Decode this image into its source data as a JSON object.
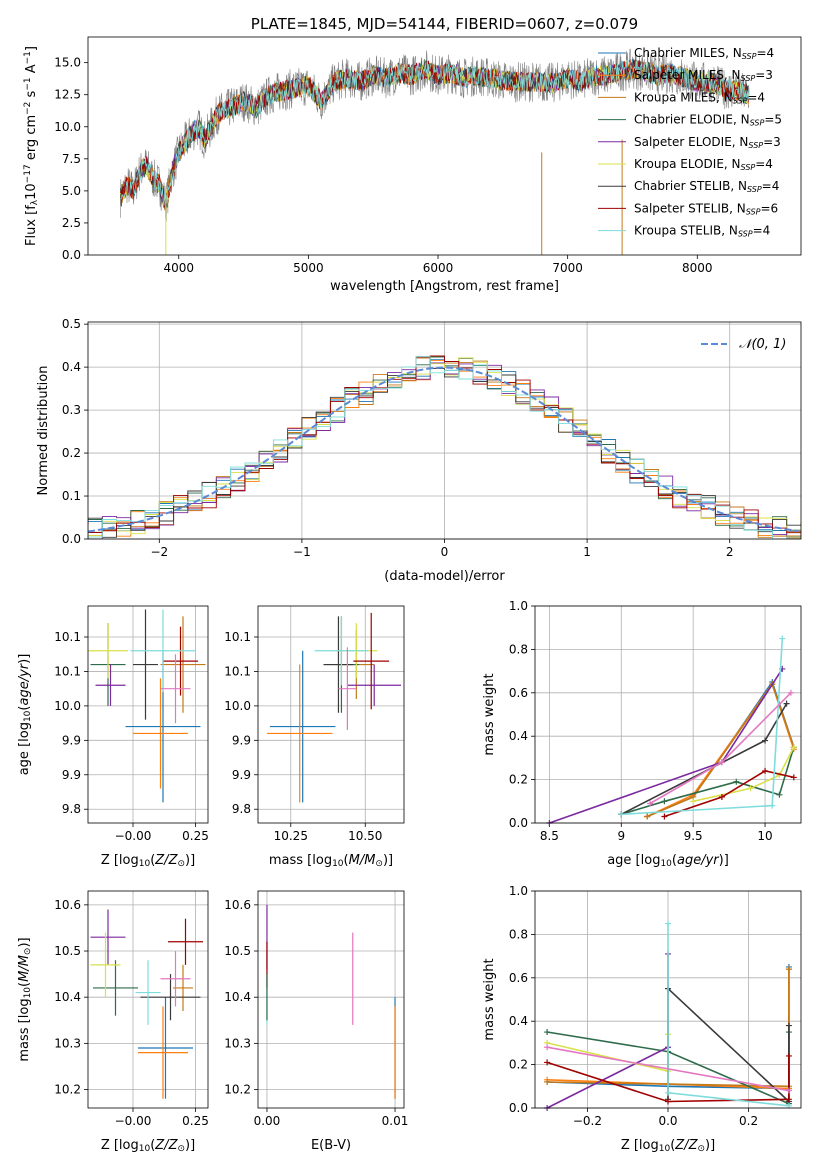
{
  "title": "PLATE=1845, MJD=54144, FIBERID=0607, z=0.079",
  "model_colors": [
    "#1f77b4",
    "#ff7f0e",
    "#c47a1a",
    "#2e6b4a",
    "#7b2aa0",
    "#d9e04a",
    "#3a3a3a",
    "#a00000",
    "#7fdcdc"
  ],
  "chart_data": [
    {
      "id": "spectrum",
      "type": "line",
      "title": "PLATE=1845, MJD=54144, FIBERID=0607, z=0.079",
      "xlabel": "wavelength [Angstrom, rest frame]",
      "ylabel_parts": [
        "Flux [f",
        "λ",
        "10",
        "−17",
        " erg cm",
        "−2",
        " s",
        "−1",
        " A",
        "−1",
        "]"
      ],
      "xlim": [
        3300,
        8800
      ],
      "ylim": [
        0,
        17
      ],
      "xticks": [
        4000,
        5000,
        6000,
        7000,
        8000
      ],
      "yticks": [
        0.0,
        2.5,
        5.0,
        7.5,
        10.0,
        12.5,
        15.0
      ],
      "grid": false,
      "legend": "right",
      "data_color": "#7f7f7f",
      "data_x": [
        3550,
        3600,
        3650,
        3700,
        3750,
        3800,
        3850,
        3900,
        3950,
        4000,
        4050,
        4100,
        4150,
        4200,
        4300,
        4400,
        4500,
        4600,
        4700,
        4800,
        4900,
        5000,
        5100,
        5200,
        5300,
        5400,
        5500,
        5600,
        5700,
        5800,
        5900,
        6000,
        6100,
        6200,
        6300,
        6400,
        6500,
        6600,
        6700,
        6800,
        6900,
        7000,
        7100,
        7200,
        7300,
        7400,
        7500,
        7600,
        7700,
        7800,
        7900,
        8000,
        8100,
        8200,
        8300,
        8400
      ],
      "data_y": [
        4.5,
        5.5,
        5.0,
        6.5,
        7.0,
        6.0,
        5.5,
        4.0,
        6.5,
        8.0,
        8.8,
        9.5,
        10.0,
        9.0,
        11.0,
        11.5,
        12.0,
        11.5,
        12.5,
        12.8,
        13.0,
        13.2,
        12.0,
        13.5,
        13.8,
        13.5,
        14.0,
        13.8,
        14.2,
        14.0,
        14.5,
        14.0,
        14.2,
        13.8,
        14.0,
        13.8,
        13.6,
        13.5,
        13.5,
        13.5,
        13.4,
        13.8,
        13.5,
        14.0,
        14.0,
        14.3,
        14.5,
        14.3,
        14.0,
        14.2,
        13.8,
        13.5,
        13.5,
        13.0,
        12.8,
        12.5
      ],
      "series": [
        {
          "name_parts": [
            "Chabrier MILES, N",
            "SSP",
            "=4"
          ]
        },
        {
          "name_parts": [
            "Salpeter MILES, N",
            "SSP",
            "=3"
          ]
        },
        {
          "name_parts": [
            "Kroupa MILES, N",
            "SSP",
            "=4"
          ]
        },
        {
          "name_parts": [
            "Chabrier ELODIE, N",
            "SSP",
            "=5"
          ]
        },
        {
          "name_parts": [
            "Salpeter ELODIE, N",
            "SSP",
            "=3"
          ]
        },
        {
          "name_parts": [
            "Kroupa ELODIE, N",
            "SSP",
            "=4"
          ]
        },
        {
          "name_parts": [
            "Chabrier STELIB, N",
            "SSP",
            "=4"
          ]
        },
        {
          "name_parts": [
            "Salpeter STELIB, N",
            "SSP",
            "=6"
          ]
        },
        {
          "name_parts": [
            "Kroupa STELIB, N",
            "SSP",
            "=4"
          ]
        }
      ]
    },
    {
      "id": "residuals",
      "type": "histogram",
      "xlabel": "(data-model)/error",
      "ylabel": "Normed distribution",
      "xlim": [
        -2.5,
        2.5
      ],
      "ylim": [
        0,
        0.505
      ],
      "xticks": [
        -2,
        -1,
        0,
        1,
        2
      ],
      "yticks": [
        0.0,
        0.1,
        0.2,
        0.3,
        0.4,
        0.5
      ],
      "grid": true,
      "legend": "top-right",
      "reference_name": "𝒩(0, 1)",
      "reference_color": "#5b8bd6",
      "bin_width": 0.1
    },
    {
      "id": "age-vs-Z",
      "type": "errorbar",
      "xlabel": "Z [log10(Z/Z☉)]",
      "ylabel": "age [log10(age/yr)]",
      "xlim": [
        -0.18,
        0.3
      ],
      "ylim": [
        9.83,
        10.145
      ],
      "xticks": [
        -0.0,
        0.25
      ],
      "xticklabels": [
        "0.00",
        "0.25"
      ],
      "xticklabels_display": [
        "−0.00",
        "0.25"
      ],
      "yticks": [
        9.85,
        9.9,
        9.95,
        10.0,
        10.05,
        10.1
      ],
      "grid": true,
      "points": [
        {
          "x": 0.12,
          "y": 9.97,
          "xerr": 0.15,
          "yerr": 0.11,
          "c": 0
        },
        {
          "x": 0.11,
          "y": 9.96,
          "xerr": 0.11,
          "yerr": 0.08,
          "c": 1
        },
        {
          "x": 0.2,
          "y": 10.06,
          "xerr": 0.09,
          "yerr": 0.07,
          "c": 2
        },
        {
          "x": -0.1,
          "y": 10.06,
          "xerr": 0.07,
          "yerr": 0.06,
          "c": 3
        },
        {
          "x": -0.09,
          "y": 10.03,
          "xerr": 0.06,
          "yerr": 0.03,
          "c": 4
        },
        {
          "x": -0.1,
          "y": 10.08,
          "xerr": 0.08,
          "yerr": 0.04,
          "c": 5
        },
        {
          "x": 0.05,
          "y": 10.06,
          "xerr": 0.05,
          "yerr": 0.08,
          "c": 6
        },
        {
          "x": 0.19,
          "y": 10.065,
          "xerr": 0.07,
          "yerr": 0.05,
          "c": 7
        },
        {
          "x": 0.12,
          "y": 10.08,
          "xerr": 0.13,
          "yerr": 0.06,
          "c": 8
        },
        {
          "x": 0.17,
          "y": 10.025,
          "xerr": 0.06,
          "yerr": 0.05,
          "c": 9
        }
      ]
    },
    {
      "id": "age-vs-mass",
      "type": "errorbar",
      "xlabel": "mass [log10(M/M☉)]",
      "ylabel": "",
      "xlim": [
        10.14,
        10.63
      ],
      "ylim": [
        9.83,
        10.145
      ],
      "xticks": [
        10.25,
        10.5
      ],
      "xticklabels": [
        "10.25",
        "10.50"
      ],
      "yticks": [
        9.85,
        9.9,
        9.95,
        10.0,
        10.05,
        10.1
      ],
      "grid": true,
      "points": [
        {
          "x": 10.29,
          "y": 9.97,
          "xerr": 0.11,
          "yerr": 0.11,
          "c": 0
        },
        {
          "x": 10.28,
          "y": 9.96,
          "xerr": 0.11,
          "yerr": 0.1,
          "c": 1
        },
        {
          "x": 10.47,
          "y": 10.06,
          "xerr": 0.06,
          "yerr": 0.05,
          "c": 2
        },
        {
          "x": 10.42,
          "y": 10.06,
          "xerr": 0.06,
          "yerr": 0.07,
          "c": 3
        },
        {
          "x": 10.53,
          "y": 10.03,
          "xerr": 0.09,
          "yerr": 0.03,
          "c": 4
        },
        {
          "x": 10.47,
          "y": 10.08,
          "xerr": 0.07,
          "yerr": 0.04,
          "c": 5
        },
        {
          "x": 10.41,
          "y": 10.06,
          "xerr": 0.05,
          "yerr": 0.07,
          "c": 6
        },
        {
          "x": 10.52,
          "y": 10.065,
          "xerr": 0.06,
          "yerr": 0.07,
          "c": 7
        },
        {
          "x": 10.42,
          "y": 10.08,
          "xerr": 0.09,
          "yerr": 0.05,
          "c": 8
        },
        {
          "x": 10.44,
          "y": 10.025,
          "xerr": 0.03,
          "yerr": 0.06,
          "c": 9
        }
      ]
    },
    {
      "id": "massweight-vs-age",
      "type": "line",
      "xlabel": "age [log10(age/yr)]",
      "ylabel": "mass weight",
      "xlim": [
        8.4,
        10.25
      ],
      "ylim": [
        0,
        1.0
      ],
      "xticks": [
        8.5,
        9.0,
        9.5,
        10.0
      ],
      "yticks": [
        0.0,
        0.2,
        0.4,
        0.6,
        0.8,
        1.0
      ],
      "grid": true,
      "series": [
        {
          "c": 0,
          "x": [
            9.18,
            9.5,
            10.05,
            10.2
          ],
          "y": [
            0.03,
            0.12,
            0.65,
            0.35
          ]
        },
        {
          "c": 1,
          "x": [
            9.18,
            9.5,
            10.05,
            10.2
          ],
          "y": [
            0.03,
            0.13,
            0.64,
            0.34
          ]
        },
        {
          "c": 2,
          "x": [
            9.18,
            9.5,
            10.05,
            10.2
          ],
          "y": [
            0.03,
            0.12,
            0.64,
            0.35
          ]
        },
        {
          "c": 3,
          "x": [
            9.0,
            9.3,
            9.8,
            10.1,
            10.2
          ],
          "y": [
            0.04,
            0.1,
            0.19,
            0.13,
            0.35
          ]
        },
        {
          "c": 4,
          "x": [
            8.5,
            9.7,
            10.12
          ],
          "y": [
            0.0,
            0.28,
            0.71
          ]
        },
        {
          "c": 5,
          "x": [
            9.5,
            9.9,
            10.1,
            10.2
          ],
          "y": [
            0.1,
            0.16,
            0.22,
            0.35
          ]
        },
        {
          "c": 6,
          "x": [
            9.0,
            10.0,
            10.15
          ],
          "y": [
            0.04,
            0.38,
            0.55
          ]
        },
        {
          "c": 7,
          "x": [
            9.3,
            9.7,
            10.0,
            10.2
          ],
          "y": [
            0.03,
            0.12,
            0.24,
            0.21
          ]
        },
        {
          "c": 8,
          "x": [
            9.0,
            10.05,
            10.12
          ],
          "y": [
            0.04,
            0.08,
            0.85
          ]
        },
        {
          "c": 9,
          "x": [
            9.2,
            9.7,
            10.18
          ],
          "y": [
            0.09,
            0.28,
            0.6
          ]
        }
      ]
    },
    {
      "id": "mass-vs-Z",
      "type": "errorbar",
      "xlabel": "Z [log10(Z/Z☉)]",
      "ylabel": "mass [log10(M/M☉)]",
      "xlim": [
        -0.18,
        0.3
      ],
      "ylim": [
        10.16,
        10.63
      ],
      "xticks": [
        -0.0,
        0.25
      ],
      "xticklabels_display": [
        "−0.00",
        "0.25"
      ],
      "yticks": [
        10.2,
        10.3,
        10.4,
        10.5,
        10.6
      ],
      "grid": true,
      "points": [
        {
          "x": 0.13,
          "y": 10.29,
          "xerr": 0.11,
          "yerr": 0.11,
          "c": 0
        },
        {
          "x": 0.12,
          "y": 10.28,
          "xerr": 0.1,
          "yerr": 0.1,
          "c": 1
        },
        {
          "x": 0.2,
          "y": 10.42,
          "xerr": 0.04,
          "yerr": 0.05,
          "c": 2
        },
        {
          "x": -0.07,
          "y": 10.42,
          "xerr": 0.09,
          "yerr": 0.06,
          "c": 3
        },
        {
          "x": -0.1,
          "y": 10.53,
          "xerr": 0.07,
          "yerr": 0.06,
          "c": 4
        },
        {
          "x": -0.11,
          "y": 10.47,
          "xerr": 0.06,
          "yerr": 0.07,
          "c": 5
        },
        {
          "x": 0.15,
          "y": 10.4,
          "xerr": 0.12,
          "yerr": 0.05,
          "c": 6
        },
        {
          "x": 0.21,
          "y": 10.52,
          "xerr": 0.07,
          "yerr": 0.05,
          "c": 7
        },
        {
          "x": 0.06,
          "y": 10.41,
          "xerr": 0.05,
          "yerr": 0.07,
          "c": 8
        },
        {
          "x": 0.17,
          "y": 10.44,
          "xerr": 0.06,
          "yerr": 0.06,
          "c": 9
        }
      ]
    },
    {
      "id": "mass-vs-ebv",
      "type": "errorbar",
      "xlabel": "E(B-V)",
      "ylabel": "",
      "xlim": [
        -0.0007,
        0.0107
      ],
      "ylim": [
        10.16,
        10.63
      ],
      "xticks": [
        0.0,
        0.01
      ],
      "xticklabels": [
        "0.00",
        "0.01"
      ],
      "yticks": [
        10.2,
        10.3,
        10.4,
        10.5,
        10.6
      ],
      "grid": true,
      "points": [
        {
          "x": 0.0,
          "y": 10.42,
          "xerr": 0,
          "yerr": 0.08,
          "c": 8
        },
        {
          "x": 0.0,
          "y": 10.53,
          "xerr": 0,
          "yerr": 0.07,
          "c": 4
        },
        {
          "x": 0.0,
          "y": 10.47,
          "xerr": 0,
          "yerr": 0.05,
          "c": 7
        },
        {
          "x": 0.0,
          "y": 10.4,
          "xerr": 0,
          "yerr": 0.05,
          "c": 3
        },
        {
          "x": 0.0067,
          "y": 10.44,
          "xerr": 0,
          "yerr": 0.1,
          "c": 9
        },
        {
          "x": 0.01,
          "y": 10.29,
          "xerr": 0,
          "yerr": 0.11,
          "c": 0
        },
        {
          "x": 0.01,
          "y": 10.28,
          "xerr": 0,
          "yerr": 0.1,
          "c": 1
        }
      ]
    },
    {
      "id": "massweight-vs-Z",
      "type": "line",
      "xlabel": "Z [log10(Z/Z☉)]",
      "ylabel": "mass weight",
      "xlim": [
        -0.33,
        0.33
      ],
      "ylim": [
        0,
        1.0
      ],
      "xticks": [
        -0.2,
        0.0,
        0.2
      ],
      "xticklabels_display": [
        "−0.2",
        "0.0",
        "0.2"
      ],
      "yticks": [
        0.0,
        0.2,
        0.4,
        0.6,
        0.8,
        1.0
      ],
      "grid": true,
      "series": [
        {
          "c": 0,
          "x": [
            -0.3,
            0.0,
            0.3,
            0.3
          ],
          "y": [
            0.12,
            0.1,
            0.09,
            0.65
          ]
        },
        {
          "c": 1,
          "x": [
            -0.3,
            0.0,
            0.3,
            0.3
          ],
          "y": [
            0.13,
            0.11,
            0.09,
            0.64
          ]
        },
        {
          "c": 2,
          "x": [
            -0.3,
            0.0,
            0.3,
            0.3
          ],
          "y": [
            0.12,
            0.11,
            0.1,
            0.64
          ]
        },
        {
          "c": 3,
          "x": [
            -0.3,
            0.0,
            0.3,
            0.3
          ],
          "y": [
            0.35,
            0.26,
            0.02,
            0.35
          ]
        },
        {
          "c": 4,
          "x": [
            -0.3,
            0.0,
            0.0
          ],
          "y": [
            0.0,
            0.28,
            0.71
          ]
        },
        {
          "c": 5,
          "x": [
            -0.3,
            0.0,
            0.0
          ],
          "y": [
            0.3,
            0.17,
            0.34
          ]
        },
        {
          "c": 6,
          "x": [
            0.0,
            0.0,
            0.3,
            0.3
          ],
          "y": [
            0.04,
            0.55,
            0.03,
            0.38
          ]
        },
        {
          "c": 7,
          "x": [
            -0.3,
            0.0,
            0.3,
            0.3
          ],
          "y": [
            0.21,
            0.03,
            0.04,
            0.24
          ]
        },
        {
          "c": 8,
          "x": [
            0.0,
            0.0,
            0.3
          ],
          "y": [
            0.85,
            0.07,
            0.01
          ]
        },
        {
          "c": 9,
          "x": [
            -0.3,
            0.3
          ],
          "y": [
            0.28,
            0.08
          ]
        }
      ]
    }
  ]
}
